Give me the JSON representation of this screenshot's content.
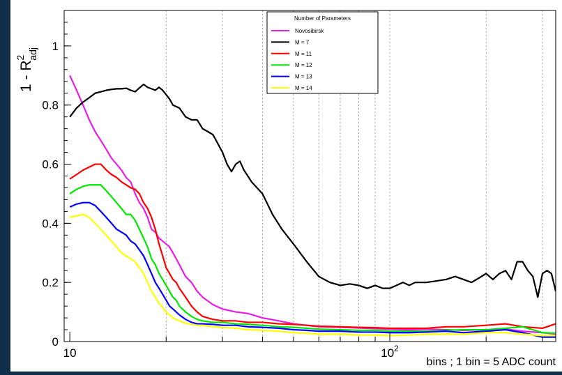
{
  "chart_data": {
    "type": "line",
    "xscale": "log",
    "xlim": [
      9.6,
      330
    ],
    "ylim": [
      0,
      1.12
    ],
    "xlabel": "bins ; 1 bin = 5 ADC count",
    "ylabel_main": "1 - R",
    "ylabel_sup": "2",
    "ylabel_sub": "adj",
    "x_major_ticks": [
      10,
      100
    ],
    "x_minor_grid": [
      20,
      30,
      40,
      50,
      60,
      70,
      80,
      90,
      200,
      300
    ],
    "x_tick_labels": [
      {
        "x": 10,
        "base": "10",
        "exp": ""
      },
      {
        "x": 100,
        "base": "10",
        "exp": "2"
      }
    ],
    "y_ticks": [
      0,
      0.2,
      0.4,
      0.6,
      0.8,
      1
    ],
    "y_tick_labels": [
      "0",
      "0.2",
      "0.4",
      "0.6",
      "0.8",
      "1"
    ],
    "legend": {
      "title": "Number of Parameters",
      "placement": "top-center"
    },
    "series": [
      {
        "name": "Novosibirsk",
        "color": "#e61ee6",
        "x": [
          10,
          10.5,
          11,
          11.5,
          12,
          12.5,
          13,
          13.5,
          14,
          14.5,
          15,
          15.5,
          16,
          16.5,
          17,
          17.5,
          18,
          18.5,
          19,
          19.5,
          20,
          20.5,
          21,
          21.5,
          22,
          23,
          24,
          25,
          26,
          28,
          30,
          33,
          36,
          40,
          45,
          50,
          55,
          60,
          70,
          80,
          90,
          100,
          115,
          130,
          150,
          170,
          200,
          230,
          260,
          300,
          330
        ],
        "values": [
          0.9,
          0.85,
          0.8,
          0.75,
          0.71,
          0.68,
          0.65,
          0.62,
          0.6,
          0.58,
          0.555,
          0.54,
          0.5,
          0.47,
          0.45,
          0.42,
          0.38,
          0.37,
          0.35,
          0.34,
          0.33,
          0.32,
          0.3,
          0.28,
          0.26,
          0.22,
          0.2,
          0.17,
          0.15,
          0.125,
          0.11,
          0.1,
          0.095,
          0.08,
          0.07,
          0.06,
          0.055,
          0.05,
          0.048,
          0.046,
          0.044,
          0.042,
          0.04,
          0.042,
          0.04,
          0.038,
          0.04,
          0.042,
          0.035,
          0.03,
          0.025
        ]
      },
      {
        "name": "M = 7",
        "color": "#000000",
        "x": [
          10,
          10.5,
          11,
          11.5,
          12,
          12.5,
          13,
          13.5,
          14,
          14.5,
          15,
          15.5,
          16,
          16.5,
          17,
          17.5,
          18,
          18.5,
          19,
          19.5,
          20,
          20.5,
          21,
          21.5,
          22,
          23,
          24,
          25,
          26,
          27,
          28,
          29,
          30,
          31,
          32,
          33,
          34,
          35,
          37,
          40,
          43,
          46,
          50,
          55,
          60,
          65,
          70,
          75,
          80,
          85,
          90,
          95,
          100,
          105,
          110,
          115,
          120,
          130,
          140,
          150,
          160,
          170,
          180,
          190,
          200,
          210,
          220,
          230,
          240,
          250,
          260,
          270,
          280,
          290,
          300,
          310,
          320,
          330
        ],
        "values": [
          0.76,
          0.79,
          0.81,
          0.825,
          0.84,
          0.845,
          0.85,
          0.853,
          0.855,
          0.855,
          0.857,
          0.85,
          0.845,
          0.858,
          0.87,
          0.86,
          0.855,
          0.85,
          0.86,
          0.85,
          0.835,
          0.82,
          0.8,
          0.795,
          0.79,
          0.76,
          0.75,
          0.75,
          0.72,
          0.71,
          0.7,
          0.67,
          0.64,
          0.6,
          0.575,
          0.6,
          0.61,
          0.58,
          0.54,
          0.5,
          0.43,
          0.38,
          0.33,
          0.27,
          0.22,
          0.2,
          0.19,
          0.195,
          0.19,
          0.18,
          0.19,
          0.18,
          0.18,
          0.19,
          0.2,
          0.19,
          0.2,
          0.2,
          0.205,
          0.21,
          0.22,
          0.21,
          0.2,
          0.215,
          0.23,
          0.21,
          0.23,
          0.24,
          0.21,
          0.27,
          0.27,
          0.24,
          0.22,
          0.15,
          0.23,
          0.24,
          0.23,
          0.17
        ]
      },
      {
        "name": "M = 11",
        "color": "#ff0000",
        "x": [
          10,
          10.5,
          11,
          11.5,
          12,
          12.5,
          13,
          13.5,
          14,
          14.5,
          15,
          15.5,
          16,
          16.5,
          17,
          17.5,
          18,
          18.5,
          19,
          19.5,
          20,
          20.5,
          21,
          21.5,
          22,
          23,
          24,
          25,
          26,
          28,
          30,
          33,
          36,
          40,
          45,
          50,
          55,
          60,
          70,
          80,
          90,
          100,
          115,
          130,
          150,
          170,
          200,
          230,
          260,
          300,
          330
        ],
        "values": [
          0.55,
          0.565,
          0.58,
          0.59,
          0.6,
          0.6,
          0.58,
          0.565,
          0.555,
          0.54,
          0.53,
          0.52,
          0.515,
          0.5,
          0.47,
          0.45,
          0.42,
          0.38,
          0.33,
          0.29,
          0.25,
          0.23,
          0.21,
          0.2,
          0.18,
          0.15,
          0.12,
          0.1,
          0.085,
          0.075,
          0.07,
          0.07,
          0.065,
          0.065,
          0.06,
          0.058,
          0.055,
          0.052,
          0.05,
          0.048,
          0.047,
          0.045,
          0.045,
          0.045,
          0.05,
          0.05,
          0.055,
          0.06,
          0.05,
          0.045,
          0.06
        ]
      },
      {
        "name": "M = 12",
        "color": "#00e600",
        "x": [
          10,
          10.5,
          11,
          11.5,
          12,
          12.5,
          13,
          13.5,
          14,
          14.5,
          15,
          15.5,
          16,
          16.5,
          17,
          17.5,
          18,
          18.5,
          19,
          19.5,
          20,
          20.5,
          21,
          21.5,
          22,
          23,
          24,
          25,
          26,
          28,
          30,
          33,
          36,
          40,
          45,
          50,
          55,
          60,
          70,
          80,
          90,
          100,
          115,
          130,
          150,
          170,
          200,
          230,
          260,
          300,
          330
        ],
        "values": [
          0.5,
          0.515,
          0.525,
          0.53,
          0.53,
          0.53,
          0.51,
          0.49,
          0.47,
          0.45,
          0.43,
          0.43,
          0.41,
          0.38,
          0.35,
          0.32,
          0.28,
          0.26,
          0.23,
          0.21,
          0.19,
          0.17,
          0.15,
          0.14,
          0.12,
          0.1,
          0.085,
          0.075,
          0.07,
          0.065,
          0.065,
          0.06,
          0.058,
          0.055,
          0.05,
          0.048,
          0.045,
          0.042,
          0.04,
          0.038,
          0.038,
          0.035,
          0.035,
          0.035,
          0.038,
          0.04,
          0.04,
          0.045,
          0.05,
          0.03,
          0.028
        ]
      },
      {
        "name": "M = 13",
        "color": "#0000ff",
        "x": [
          10,
          10.5,
          11,
          11.5,
          12,
          12.5,
          13,
          13.5,
          14,
          14.5,
          15,
          15.5,
          16,
          16.5,
          17,
          17.5,
          18,
          18.5,
          19,
          19.5,
          20,
          20.5,
          21,
          21.5,
          22,
          23,
          24,
          25,
          26,
          28,
          30,
          33,
          36,
          40,
          45,
          50,
          55,
          60,
          70,
          80,
          90,
          100,
          115,
          130,
          150,
          170,
          200,
          230,
          260,
          300,
          330
        ],
        "values": [
          0.455,
          0.465,
          0.47,
          0.47,
          0.46,
          0.44,
          0.42,
          0.4,
          0.38,
          0.37,
          0.36,
          0.34,
          0.33,
          0.31,
          0.29,
          0.26,
          0.23,
          0.2,
          0.18,
          0.16,
          0.14,
          0.12,
          0.11,
          0.1,
          0.09,
          0.075,
          0.065,
          0.06,
          0.06,
          0.058,
          0.055,
          0.055,
          0.05,
          0.048,
          0.045,
          0.04,
          0.038,
          0.035,
          0.035,
          0.032,
          0.032,
          0.03,
          0.03,
          0.032,
          0.035,
          0.03,
          0.035,
          0.04,
          0.03,
          0.015,
          0.015
        ]
      },
      {
        "name": "M = 14",
        "color": "#ffff00",
        "x": [
          10,
          10.5,
          11,
          11.5,
          12,
          12.5,
          13,
          13.5,
          14,
          14.5,
          15,
          15.5,
          16,
          16.5,
          17,
          17.5,
          18,
          18.5,
          19,
          19.5,
          20,
          20.5,
          21,
          21.5,
          22,
          23,
          24,
          25,
          26,
          28,
          30,
          33,
          36,
          40,
          45,
          50,
          55,
          60,
          70,
          80,
          90,
          100,
          115,
          130,
          150,
          170,
          200,
          230,
          260,
          300,
          330
        ],
        "values": [
          0.42,
          0.425,
          0.43,
          0.42,
          0.4,
          0.38,
          0.36,
          0.34,
          0.32,
          0.3,
          0.29,
          0.28,
          0.27,
          0.25,
          0.23,
          0.2,
          0.17,
          0.15,
          0.13,
          0.115,
          0.1,
          0.09,
          0.08,
          0.075,
          0.07,
          0.062,
          0.058,
          0.055,
          0.055,
          0.05,
          0.048,
          0.045,
          0.04,
          0.038,
          0.035,
          0.03,
          0.028,
          0.025,
          0.025,
          0.022,
          0.022,
          0.02,
          0.022,
          0.025,
          0.025,
          0.025,
          0.03,
          0.03,
          0.025,
          0.02,
          0.02
        ]
      }
    ]
  }
}
